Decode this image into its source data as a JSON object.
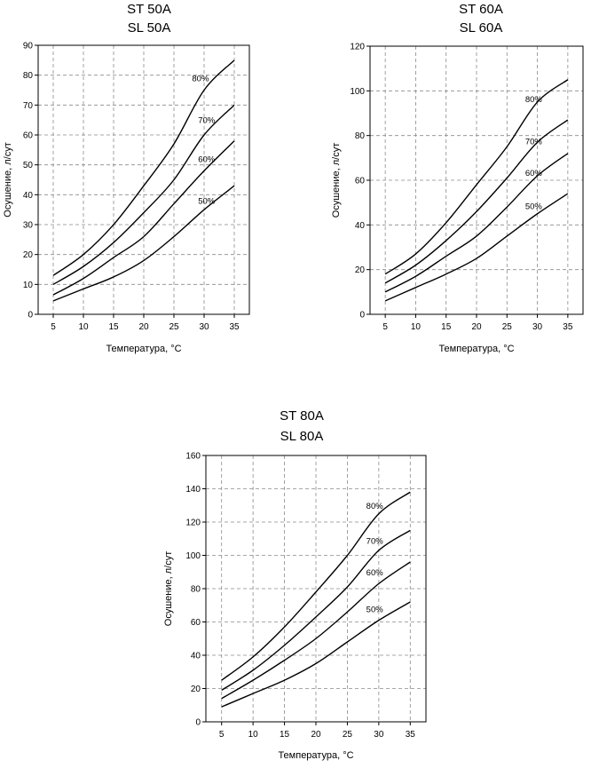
{
  "chart_data": [
    {
      "type": "line",
      "title": [
        "ST 50A",
        "SL 50A"
      ],
      "xlabel": "Температура, °C",
      "ylabel": "Осушение, л/сут",
      "xlim": [
        2.5,
        37.5
      ],
      "ylim": [
        0,
        90
      ],
      "xticks": [
        5,
        10,
        15,
        20,
        25,
        30,
        35
      ],
      "yticks": [
        0,
        10,
        20,
        30,
        40,
        50,
        60,
        70,
        80,
        90
      ],
      "grid": true,
      "series": [
        {
          "name": "80%",
          "label_at": [
            28,
            78
          ],
          "x": [
            5,
            10,
            15,
            20,
            25,
            30,
            35
          ],
          "values": [
            13,
            20,
            30,
            43,
            57,
            75,
            85
          ]
        },
        {
          "name": "70%",
          "label_at": [
            29,
            64
          ],
          "x": [
            5,
            10,
            15,
            20,
            25,
            30,
            35
          ],
          "values": [
            10,
            16,
            24,
            34,
            45,
            60,
            70
          ]
        },
        {
          "name": "60%",
          "label_at": [
            29,
            51
          ],
          "x": [
            5,
            10,
            15,
            20,
            25,
            30,
            35
          ],
          "values": [
            6.5,
            12,
            19,
            26,
            37,
            48,
            58
          ]
        },
        {
          "name": "50%",
          "label_at": [
            29,
            37
          ],
          "x": [
            5,
            10,
            15,
            20,
            25,
            30,
            35
          ],
          "values": [
            4.5,
            8.5,
            12.5,
            18,
            26,
            35,
            43
          ]
        }
      ]
    },
    {
      "type": "line",
      "title": [
        "ST 60A",
        "SL 60A"
      ],
      "xlabel": "Температура, °C",
      "ylabel": "Осушение, л/сут",
      "xlim": [
        2.5,
        37.5
      ],
      "ylim": [
        0,
        120
      ],
      "xticks": [
        5,
        10,
        15,
        20,
        25,
        30,
        35
      ],
      "yticks": [
        0,
        20,
        40,
        60,
        80,
        100,
        120
      ],
      "grid": true,
      "series": [
        {
          "name": "80%",
          "label_at": [
            28,
            95
          ],
          "x": [
            5,
            10,
            15,
            20,
            25,
            30,
            35
          ],
          "values": [
            18,
            27,
            41,
            58,
            75,
            95,
            105
          ]
        },
        {
          "name": "70%",
          "label_at": [
            28,
            76
          ],
          "x": [
            5,
            10,
            15,
            20,
            25,
            30,
            35
          ],
          "values": [
            14,
            22,
            33,
            46,
            61,
            77,
            87
          ]
        },
        {
          "name": "60%",
          "label_at": [
            28,
            62
          ],
          "x": [
            5,
            10,
            15,
            20,
            25,
            30,
            35
          ],
          "values": [
            10,
            17,
            26,
            35,
            48,
            62,
            72
          ]
        },
        {
          "name": "50%",
          "label_at": [
            28,
            47
          ],
          "x": [
            5,
            10,
            15,
            20,
            25,
            30,
            35
          ],
          "values": [
            6,
            12,
            18,
            25,
            35,
            45,
            54
          ]
        }
      ]
    },
    {
      "type": "line",
      "title": [
        "ST 80A",
        "SL 80A"
      ],
      "xlabel": "Температура, °C",
      "ylabel": "Осушение, л/сут",
      "xlim": [
        2.5,
        37.5
      ],
      "ylim": [
        0,
        160
      ],
      "xticks": [
        5,
        10,
        15,
        20,
        25,
        30,
        35
      ],
      "yticks": [
        0,
        20,
        40,
        60,
        80,
        100,
        120,
        140,
        160
      ],
      "grid": true,
      "series": [
        {
          "name": "80%",
          "label_at": [
            28,
            128
          ],
          "x": [
            5,
            10,
            15,
            20,
            25,
            30,
            35
          ],
          "values": [
            25,
            39,
            57,
            78,
            100,
            125,
            138
          ]
        },
        {
          "name": "70%",
          "label_at": [
            28,
            107
          ],
          "x": [
            5,
            10,
            15,
            20,
            25,
            30,
            35
          ],
          "values": [
            19,
            31,
            46,
            63,
            81,
            103,
            115
          ]
        },
        {
          "name": "60%",
          "label_at": [
            28,
            88
          ],
          "x": [
            5,
            10,
            15,
            20,
            25,
            30,
            35
          ],
          "values": [
            14,
            25,
            37,
            50,
            66,
            83,
            96
          ]
        },
        {
          "name": "50%",
          "label_at": [
            28,
            66
          ],
          "x": [
            5,
            10,
            15,
            20,
            25,
            30,
            35
          ],
          "values": [
            9,
            17,
            25,
            35,
            48,
            61,
            72
          ]
        }
      ]
    }
  ]
}
